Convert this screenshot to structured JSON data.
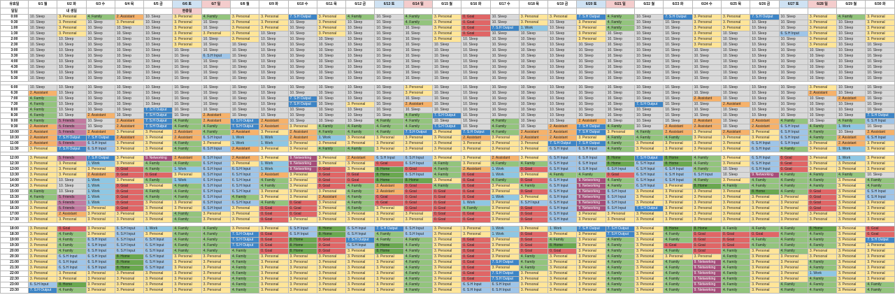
{
  "labels": {
    "row_label_1": "유효일",
    "row_label_2": "일일"
  },
  "header": {
    "dates": [
      "6/1 월",
      "6/2 화",
      "6/3 수",
      "6/4 목",
      "6/5 금",
      "6/6 토",
      "6/7 일",
      "6/8 월",
      "6/9 화",
      "6/10 수",
      "6/11 목",
      "6/12 금",
      "6/13 토",
      "6/14 일",
      "6/15 월",
      "6/16 화",
      "6/17 수",
      "6/18 목",
      "6/19 금",
      "6/20 토",
      "6/21 일",
      "6/22 월",
      "6/23 화",
      "6/24 수",
      "6/25 목",
      "6/26 금",
      "6/27 토",
      "6/28 일",
      "6/29 월",
      "6/30 화"
    ],
    "day_types": [
      "wk",
      "wk",
      "wk",
      "wk",
      "wk",
      "sat",
      "sun",
      "wk",
      "wk",
      "wk",
      "wk",
      "wk",
      "sat",
      "sun",
      "wk",
      "wk",
      "wk",
      "wk",
      "wk",
      "sat",
      "sun",
      "wk",
      "wk",
      "wk",
      "wk",
      "wk",
      "sat",
      "sun",
      "wk",
      "wk"
    ],
    "notes": [
      "",
      "내 생일",
      "",
      "",
      "",
      "현충일",
      "",
      "",
      "",
      "",
      "",
      "",
      "",
      "",
      "",
      "",
      "",
      "",
      "",
      "",
      "",
      "",
      "",
      "",
      "",
      "",
      "",
      "",
      "",
      ""
    ],
    "note_holiday": [
      false,
      false,
      false,
      false,
      false,
      true,
      false,
      false,
      false,
      false,
      false,
      false,
      false,
      false,
      false,
      false,
      false,
      false,
      false,
      false,
      false,
      false,
      false,
      false,
      false,
      false,
      false,
      false,
      false,
      false
    ]
  },
  "legend": {
    "0": "0. Goal",
    "1": "1. Work",
    "2": "2. Assistant",
    "3": "3. Personal",
    "4": "4. Family",
    "5": "5. Friends",
    "6": "6. S.H Input",
    "7": "7. S.H Output",
    "8": "8. Home",
    "9": "9. Networking",
    "10": "10. Sleep"
  },
  "colors": {
    "0": "#e06666",
    "1": "#8fc7e3",
    "2": "#f6b26b",
    "3": "#ffe599",
    "4": "#93c47d",
    "5": "#c27ba0",
    "6": "#9fc5e8",
    "7": "#3d85c6",
    "8": "#6aa84f",
    "9": "#a64d79",
    "10": "#d9d9d9"
  },
  "times": [
    "0:00",
    "0:30",
    "1:00",
    "1:30",
    "2:00",
    "2:30",
    "3:00",
    "3:30",
    "4:00",
    "4:30",
    "5:00",
    "5:30",
    "6:00",
    "6:30",
    "7:00",
    "7:30",
    "8:00",
    "8:30",
    "9:00",
    "9:30",
    "10:00",
    "10:30",
    "11:00",
    "11:30",
    "12:00",
    "12:30",
    "13:00",
    "13:30",
    "14:00",
    "14:30",
    "15:00",
    "15:30",
    "16:00",
    "16:30",
    "17:00",
    "17:30",
    "18:00",
    "18:30",
    "19:00",
    "19:30",
    "20:00",
    "20:30",
    "21:00",
    "21:30",
    "22:00",
    "22:30",
    "23:00",
    "23:30"
  ],
  "schedule": [
    [
      10,
      3,
      4,
      2,
      10,
      3,
      4,
      3,
      3,
      7,
      3,
      4,
      10,
      4,
      3,
      0,
      10,
      3,
      3,
      7,
      4,
      10,
      7,
      3,
      3,
      7,
      10,
      3,
      4,
      3
    ],
    [
      10,
      3,
      10,
      3,
      10,
      3,
      10,
      3,
      3,
      10,
      3,
      10,
      10,
      4,
      3,
      0,
      10,
      3,
      10,
      3,
      4,
      10,
      10,
      3,
      3,
      10,
      10,
      3,
      10,
      3
    ],
    [
      10,
      3,
      10,
      10,
      10,
      3,
      10,
      3,
      3,
      10,
      3,
      10,
      10,
      10,
      3,
      0,
      7,
      1,
      10,
      3,
      4,
      10,
      10,
      3,
      3,
      10,
      10,
      3,
      10,
      3
    ],
    [
      10,
      3,
      10,
      10,
      10,
      3,
      3,
      3,
      10,
      10,
      3,
      10,
      10,
      10,
      3,
      0,
      10,
      10,
      10,
      3,
      10,
      10,
      10,
      3,
      10,
      10,
      6,
      3,
      10,
      3
    ],
    [
      10,
      10,
      10,
      10,
      10,
      3,
      10,
      3,
      10,
      10,
      10,
      10,
      10,
      10,
      3,
      10,
      10,
      10,
      10,
      3,
      10,
      10,
      10,
      3,
      10,
      10,
      10,
      3,
      10,
      3
    ],
    [
      10,
      10,
      10,
      10,
      10,
      3,
      10,
      10,
      10,
      10,
      10,
      10,
      10,
      10,
      10,
      10,
      10,
      10,
      10,
      10,
      10,
      10,
      10,
      3,
      10,
      10,
      10,
      3,
      10,
      10
    ],
    [
      10,
      10,
      10,
      10,
      10,
      10,
      10,
      10,
      10,
      10,
      10,
      10,
      10,
      10,
      10,
      10,
      10,
      10,
      10,
      10,
      10,
      10,
      10,
      10,
      10,
      10,
      10,
      10,
      10,
      10
    ],
    [
      10,
      10,
      10,
      10,
      10,
      10,
      6,
      10,
      10,
      10,
      10,
      10,
      10,
      10,
      10,
      10,
      10,
      10,
      10,
      10,
      10,
      10,
      10,
      10,
      10,
      10,
      10,
      10,
      10,
      10
    ],
    [
      10,
      10,
      10,
      10,
      10,
      10,
      10,
      10,
      10,
      10,
      10,
      10,
      10,
      10,
      10,
      10,
      10,
      10,
      10,
      10,
      10,
      10,
      10,
      10,
      10,
      10,
      10,
      10,
      10,
      10
    ],
    [
      10,
      10,
      10,
      10,
      10,
      10,
      10,
      10,
      10,
      10,
      10,
      10,
      10,
      10,
      10,
      10,
      10,
      10,
      10,
      10,
      10,
      10,
      10,
      10,
      10,
      10,
      10,
      10,
      10,
      10
    ],
    [
      10,
      10,
      10,
      10,
      10,
      10,
      10,
      10,
      10,
      10,
      10,
      10,
      10,
      10,
      10,
      10,
      10,
      10,
      10,
      10,
      10,
      10,
      10,
      10,
      10,
      10,
      10,
      10,
      10,
      10
    ],
    [
      10,
      10,
      10,
      10,
      10,
      10,
      10,
      10,
      10,
      10,
      10,
      10,
      10,
      10,
      10,
      10,
      10,
      10,
      10,
      10,
      10,
      10,
      10,
      10,
      10,
      10,
      10,
      10,
      10,
      10
    ],
    [
      10,
      10,
      10,
      10,
      10,
      10,
      10,
      10,
      10,
      10,
      10,
      10,
      10,
      3,
      10,
      10,
      10,
      10,
      10,
      10,
      10,
      10,
      10,
      10,
      10,
      10,
      10,
      3,
      10,
      10
    ],
    [
      2,
      10,
      10,
      10,
      10,
      10,
      10,
      10,
      10,
      10,
      10,
      10,
      10,
      3,
      10,
      10,
      10,
      10,
      10,
      10,
      10,
      10,
      10,
      10,
      10,
      10,
      10,
      2,
      10,
      10
    ],
    [
      4,
      10,
      10,
      10,
      10,
      10,
      10,
      10,
      10,
      7,
      10,
      10,
      10,
      10,
      10,
      10,
      10,
      10,
      10,
      10,
      10,
      10,
      10,
      2,
      10,
      10,
      10,
      10,
      2,
      10
    ],
    [
      4,
      10,
      10,
      10,
      10,
      10,
      10,
      10,
      10,
      7,
      10,
      3,
      10,
      2,
      10,
      10,
      10,
      10,
      10,
      10,
      10,
      7,
      10,
      10,
      2,
      10,
      10,
      10,
      10,
      10
    ],
    [
      4,
      10,
      10,
      10,
      7,
      10,
      10,
      10,
      10,
      10,
      10,
      10,
      10,
      10,
      10,
      10,
      10,
      10,
      10,
      10,
      10,
      10,
      10,
      10,
      10,
      10,
      10,
      10,
      10,
      10
    ],
    [
      4,
      10,
      2,
      10,
      7,
      10,
      2,
      10,
      10,
      10,
      10,
      10,
      10,
      4,
      7,
      10,
      10,
      10,
      10,
      10,
      10,
      10,
      10,
      10,
      10,
      10,
      10,
      10,
      10,
      7
    ],
    [
      4,
      5,
      10,
      2,
      7,
      4,
      2,
      7,
      2,
      10,
      10,
      10,
      4,
      4,
      10,
      10,
      4,
      10,
      10,
      2,
      10,
      10,
      10,
      2,
      10,
      2,
      4,
      10,
      4,
      6
    ],
    [
      2,
      5,
      10,
      2,
      7,
      4,
      4,
      7,
      2,
      3,
      4,
      4,
      4,
      4,
      7,
      10,
      4,
      10,
      2,
      7,
      4,
      10,
      2,
      2,
      10,
      2,
      6,
      4,
      1,
      10
    ],
    [
      2,
      5,
      2,
      3,
      3,
      2,
      4,
      2,
      3,
      2,
      4,
      4,
      4,
      7,
      3,
      7,
      4,
      2,
      2,
      7,
      3,
      4,
      2,
      3,
      2,
      3,
      6,
      4,
      10,
      2
    ],
    [
      2,
      7,
      7,
      2,
      3,
      2,
      6,
      1,
      1,
      2,
      1,
      3,
      3,
      3,
      3,
      2,
      3,
      2,
      2,
      3,
      4,
      4,
      4,
      3,
      3,
      3,
      6,
      4,
      2,
      6
    ],
    [
      2,
      5,
      6,
      3,
      3,
      4,
      3,
      1,
      1,
      3,
      3,
      3,
      3,
      3,
      3,
      3,
      3,
      3,
      7,
      7,
      4,
      3,
      3,
      3,
      3,
      6,
      6,
      3,
      2,
      3
    ],
    [
      3,
      7,
      6,
      3,
      3,
      4,
      6,
      2,
      3,
      3,
      4,
      4,
      3,
      3,
      3,
      3,
      3,
      3,
      6,
      6,
      4,
      3,
      3,
      3,
      3,
      6,
      4,
      3,
      1,
      3
    ],
    [
      3,
      5,
      7,
      3,
      9,
      2,
      6,
      2,
      3,
      9,
      3,
      2,
      6,
      6,
      3,
      3,
      2,
      3,
      6,
      6,
      8,
      7,
      8,
      4,
      3,
      6,
      0,
      3,
      1,
      3
    ],
    [
      3,
      3,
      1,
      3,
      4,
      4,
      6,
      3,
      1,
      9,
      3,
      3,
      0,
      6,
      4,
      3,
      4,
      4,
      6,
      6,
      8,
      6,
      8,
      4,
      3,
      6,
      0,
      3,
      3,
      3
    ],
    [
      3,
      3,
      3,
      0,
      4,
      1,
      6,
      6,
      1,
      9,
      0,
      3,
      8,
      0,
      4,
      2,
      1,
      0,
      6,
      6,
      6,
      6,
      6,
      4,
      10,
      6,
      0,
      3,
      3,
      3
    ],
    [
      3,
      3,
      2,
      0,
      0,
      3,
      6,
      6,
      2,
      3,
      0,
      0,
      8,
      6,
      4,
      0,
      1,
      3,
      4,
      4,
      0,
      6,
      6,
      6,
      10,
      9,
      4,
      4,
      4,
      10
    ],
    [
      3,
      10,
      1,
      3,
      4,
      1,
      6,
      6,
      4,
      3,
      0,
      0,
      8,
      8,
      3,
      0,
      4,
      0,
      6,
      9,
      4,
      6,
      6,
      4,
      3,
      4,
      4,
      4,
      3,
      4
    ],
    [
      3,
      10,
      1,
      0,
      3,
      4,
      6,
      6,
      4,
      3,
      0,
      4,
      2,
      0,
      4,
      0,
      3,
      4,
      6,
      9,
      4,
      6,
      3,
      8,
      4,
      4,
      4,
      4,
      3,
      4
    ],
    [
      4,
      10,
      1,
      0,
      4,
      4,
      6,
      6,
      3,
      3,
      3,
      4,
      2,
      0,
      0,
      0,
      3,
      0,
      6,
      9,
      6,
      3,
      3,
      3,
      3,
      8,
      4,
      0,
      3,
      6
    ],
    [
      4,
      5,
      1,
      0,
      4,
      4,
      6,
      4,
      3,
      3,
      2,
      4,
      0,
      0,
      0,
      0,
      1,
      3,
      6,
      9,
      6,
      3,
      3,
      3,
      3,
      3,
      3,
      0,
      3,
      6
    ],
    [
      3,
      5,
      1,
      0,
      3,
      3,
      6,
      6,
      4,
      0,
      3,
      4,
      0,
      0,
      0,
      1,
      3,
      6,
      6,
      9,
      6,
      3,
      3,
      3,
      3,
      3,
      3,
      0,
      3,
      3
    ],
    [
      3,
      5,
      3,
      0,
      3,
      3,
      6,
      3,
      0,
      0,
      3,
      4,
      3,
      0,
      0,
      4,
      3,
      0,
      6,
      9,
      6,
      7,
      3,
      3,
      3,
      3,
      3,
      0,
      3,
      3
    ],
    [
      3,
      2,
      3,
      3,
      3,
      4,
      3,
      3,
      0,
      0,
      3,
      3,
      3,
      3,
      0,
      0,
      3,
      0,
      6,
      3,
      3,
      3,
      3,
      3,
      3,
      3,
      3,
      3,
      3,
      3
    ],
    [
      3,
      3,
      3,
      3,
      3,
      4,
      3,
      3,
      0,
      3,
      3,
      3,
      3,
      3,
      0,
      0,
      3,
      0,
      6,
      3,
      3,
      3,
      3,
      3,
      3,
      3,
      3,
      3,
      3,
      3
    ],
    [
      3,
      0,
      3,
      6,
      1,
      4,
      4,
      3,
      3,
      6,
      8,
      6,
      7,
      6,
      3,
      3,
      1,
      3,
      1,
      7,
      7,
      3,
      8,
      8,
      4,
      4,
      4,
      8,
      3,
      0
    ],
    [
      3,
      4,
      3,
      6,
      3,
      4,
      4,
      7,
      0,
      6,
      8,
      6,
      4,
      6,
      3,
      3,
      1,
      0,
      3,
      3,
      7,
      3,
      4,
      0,
      0,
      0,
      4,
      4,
      3,
      0
    ],
    [
      3,
      4,
      6,
      6,
      6,
      4,
      4,
      7,
      0,
      8,
      0,
      7,
      4,
      4,
      3,
      0,
      3,
      0,
      4,
      3,
      4,
      3,
      4,
      0,
      0,
      4,
      4,
      4,
      3,
      7
    ],
    [
      3,
      4,
      6,
      6,
      6,
      4,
      4,
      7,
      0,
      8,
      0,
      6,
      8,
      4,
      3,
      0,
      3,
      0,
      8,
      3,
      4,
      3,
      0,
      0,
      0,
      4,
      4,
      4,
      3,
      3
    ],
    [
      3,
      4,
      6,
      6,
      6,
      4,
      4,
      4,
      0,
      8,
      0,
      3,
      8,
      4,
      3,
      0,
      3,
      0,
      0,
      3,
      4,
      3,
      4,
      0,
      4,
      3,
      4,
      3,
      3,
      3
    ],
    [
      3,
      6,
      6,
      8,
      6,
      3,
      3,
      4,
      3,
      3,
      3,
      3,
      3,
      4,
      3,
      0,
      3,
      4,
      3,
      3,
      4,
      3,
      3,
      3,
      4,
      3,
      3,
      3,
      3,
      3
    ],
    [
      3,
      6,
      6,
      8,
      6,
      3,
      3,
      4,
      3,
      3,
      3,
      3,
      3,
      4,
      3,
      0,
      7,
      4,
      3,
      3,
      4,
      3,
      4,
      9,
      4,
      3,
      3,
      4,
      3,
      3
    ],
    [
      3,
      6,
      6,
      8,
      6,
      3,
      3,
      4,
      3,
      3,
      3,
      3,
      3,
      4,
      3,
      0,
      3,
      4,
      3,
      3,
      4,
      3,
      4,
      9,
      4,
      3,
      3,
      4,
      3,
      3
    ],
    [
      3,
      3,
      3,
      3,
      3,
      3,
      3,
      4,
      3,
      3,
      3,
      3,
      3,
      4,
      3,
      0,
      7,
      3,
      3,
      3,
      4,
      3,
      4,
      9,
      4,
      3,
      3,
      1,
      3,
      3
    ],
    [
      3,
      3,
      3,
      3,
      3,
      3,
      3,
      4,
      3,
      3,
      3,
      3,
      3,
      4,
      3,
      0,
      7,
      3,
      3,
      3,
      4,
      3,
      4,
      9,
      4,
      3,
      3,
      4,
      3,
      3
    ],
    [
      6,
      8,
      3,
      3,
      3,
      3,
      3,
      4,
      3,
      3,
      3,
      3,
      3,
      4,
      3,
      6,
      6,
      3,
      3,
      3,
      4,
      3,
      4,
      9,
      4,
      3,
      4,
      4,
      3,
      4
    ],
    [
      7,
      4,
      3,
      3,
      3,
      3,
      3,
      4,
      3,
      3,
      3,
      3,
      3,
      4,
      3,
      6,
      6,
      3,
      3,
      3,
      4,
      3,
      4,
      9,
      4,
      3,
      4,
      4,
      3,
      4
    ]
  ]
}
